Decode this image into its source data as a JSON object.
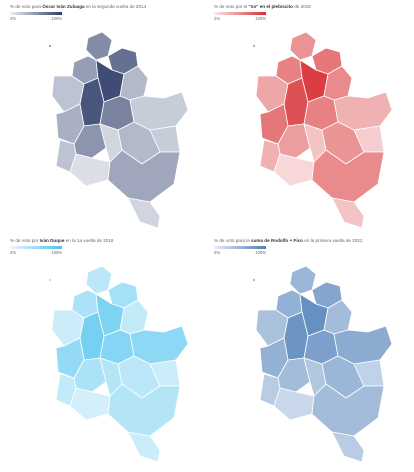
{
  "maps": [
    {
      "title_pre": "% de voto para ",
      "title_bold": "Óscar Iván Zuluaga",
      "title_post": " en la segunda vuelta de 2014",
      "legend_min": "2%",
      "legend_max": "100%",
      "color_low": "#eef0f5",
      "color_high": "#2b3a67",
      "intensity": [
        0.55,
        0.7,
        0.45,
        0.9,
        0.3,
        0.25,
        0.85,
        0.6,
        0.2,
        0.35,
        0.5,
        0.15,
        0.3,
        0.2,
        0.25,
        0.1,
        0.4,
        0.15
      ]
    },
    {
      "title_pre": "% de voto por el ",
      "title_bold": "\"no\" en el plebiscito",
      "title_post": " de 2016",
      "legend_min": "2%",
      "legend_max": "100%",
      "color_low": "#fbeaea",
      "color_high": "#d62b2f",
      "intensity": [
        0.45,
        0.6,
        0.55,
        0.9,
        0.5,
        0.35,
        0.8,
        0.55,
        0.3,
        0.6,
        0.4,
        0.2,
        0.45,
        0.15,
        0.3,
        0.1,
        0.5,
        0.2
      ]
    },
    {
      "title_pre": "% de voto por ",
      "title_bold": "Iván Duque",
      "title_post": " en la 1a vuelta de 2018",
      "legend_min": "2%",
      "legend_max": "100%",
      "color_low": "#eaf7fc",
      "color_high": "#4fc3ef",
      "intensity": [
        0.3,
        0.45,
        0.4,
        0.7,
        0.25,
        0.2,
        0.75,
        0.65,
        0.6,
        0.55,
        0.4,
        0.35,
        0.3,
        0.2,
        0.25,
        0.15,
        0.35,
        0.2
      ]
    },
    {
      "title_pre": "% de voto para la ",
      "title_bold": "suma de Rodolfo + Fico",
      "title_post": " en la primera vuelta de 2022",
      "legend_min": "2%",
      "legend_max": "100%",
      "color_low": "#e6edf6",
      "color_high": "#4f7fb8",
      "intensity": [
        0.5,
        0.65,
        0.55,
        0.85,
        0.45,
        0.4,
        0.8,
        0.7,
        0.6,
        0.55,
        0.45,
        0.35,
        0.5,
        0.25,
        0.3,
        0.2,
        0.45,
        0.3
      ]
    }
  ]
}
